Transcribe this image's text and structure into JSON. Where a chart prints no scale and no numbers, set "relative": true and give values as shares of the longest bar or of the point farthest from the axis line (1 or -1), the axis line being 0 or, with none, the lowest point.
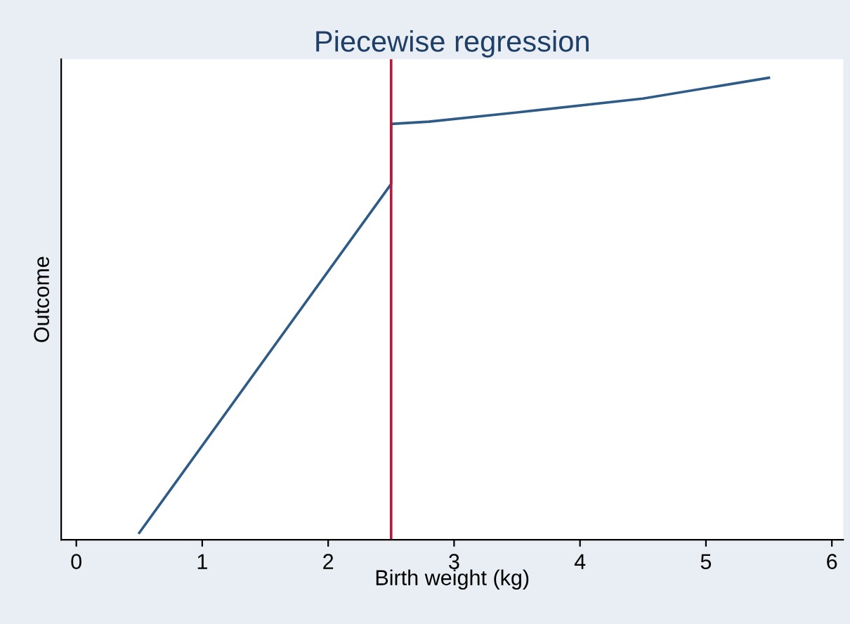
{
  "chart_data": {
    "type": "line",
    "title": "Piecewise regression",
    "xlabel": "Birth weight (kg)",
    "ylabel": "Outcome",
    "relative": true,
    "series": [
      {
        "color": "#2e5b87",
        "x": [
          0.5,
          2.5,
          2.5,
          2.8,
          3.5,
          4.5,
          5.5
        ],
        "values": [
          0.015,
          0.77,
          0.9,
          0.905,
          0.925,
          0.955,
          1.0
        ]
      }
    ],
    "xlim": [
      -0.12,
      6.09
    ],
    "xticks": [
      0,
      1,
      2,
      3,
      4,
      5,
      6
    ],
    "ref_lines": [
      {
        "axis": "x",
        "value": 2.5,
        "color": "#c0143c"
      }
    ],
    "grid": false,
    "legend": false,
    "marker": "none",
    "line_style": "solid"
  }
}
